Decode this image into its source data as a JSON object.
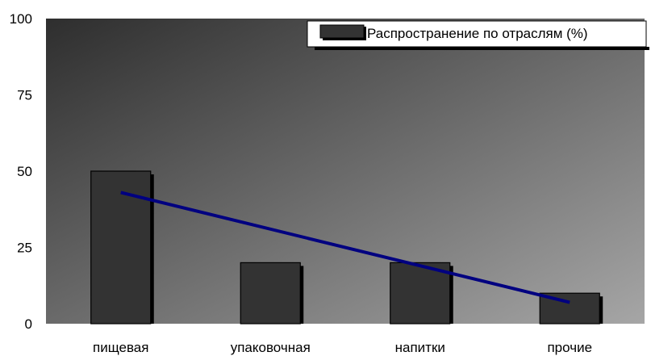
{
  "chart_data": {
    "type": "bar",
    "categories": [
      "пищевая",
      "упаковочная",
      "напитки",
      "прочие"
    ],
    "series": [
      {
        "name": "Распространение по отраслям (%)",
        "values": [
          50,
          20,
          20,
          10
        ]
      }
    ],
    "trendline": {
      "type": "linear",
      "start": 43,
      "end": 7
    },
    "ylim": [
      0,
      100
    ],
    "yticks": [
      0,
      25,
      50,
      75,
      100
    ],
    "legend_position": "top-right",
    "colors": {
      "bar": "#333333",
      "bar_shadow": "#000000",
      "trendline": "#000080",
      "plot_bg_dark": "#2e2e2e",
      "plot_bg_light": "#a6a6a6"
    }
  }
}
